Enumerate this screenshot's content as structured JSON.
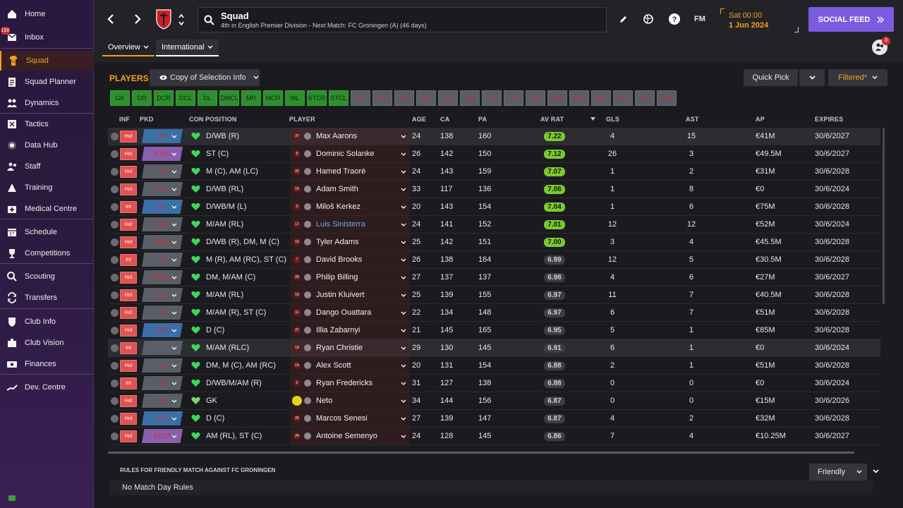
{
  "sidebar": {
    "items": [
      {
        "label": "Home"
      },
      {
        "label": "Inbox",
        "badge": "150"
      },
      {
        "label": "Squad"
      },
      {
        "label": "Squad Planner"
      },
      {
        "label": "Dynamics"
      },
      {
        "label": "Tactics"
      },
      {
        "label": "Data Hub"
      },
      {
        "label": "Staff"
      },
      {
        "label": "Training"
      },
      {
        "label": "Medical Centre"
      },
      {
        "label": "Schedule"
      },
      {
        "label": "Competitions"
      },
      {
        "label": "Scouting"
      },
      {
        "label": "Transfers"
      },
      {
        "label": "Club Info"
      },
      {
        "label": "Club Vision"
      },
      {
        "label": "Finances"
      },
      {
        "label": "Dev. Centre"
      }
    ]
  },
  "header": {
    "title": "Squad",
    "subtitle": "4th in English Premier Division - Next Match: FC Groningen (A) (46 days)",
    "day": "Sat 00:00",
    "date": "1 Jun 2024",
    "social_label": "SOCIAL FEED",
    "fm_label": "FM",
    "notif_count": "3",
    "tabs": [
      {
        "label": "Overview"
      },
      {
        "label": "International"
      }
    ]
  },
  "players_panel": {
    "title": "PLAYERS",
    "selection_label": "Copy of Selection Info",
    "quick_pick": "Quick Pick",
    "filtered": "Filtered*",
    "positions_on": [
      "GK",
      "DR",
      "DCR",
      "DCL",
      "DL",
      "DMCL",
      "MR",
      "MCR",
      "ML",
      "STCR",
      "STCL"
    ],
    "positions_off": [
      "S1",
      "S2",
      "S3",
      "S4",
      "S5",
      "S6",
      "S7",
      "S8",
      "S9",
      "S10",
      "S11",
      "S12",
      "S13",
      "S14",
      "S15"
    ],
    "headers": {
      "inf": "INF",
      "pkd": "PKD",
      "con": "CON",
      "position": "POSITION",
      "player": "PLAYER",
      "age": "AGE",
      "ca": "CA",
      "pa": "PA",
      "avrat": "AV RAT",
      "gls": "GLS",
      "ast": "AST",
      "ap": "AP",
      "expires": "EXPIRES"
    }
  },
  "rows": [
    {
      "inf": "Hol",
      "pkd": "DR",
      "pkd_color": "#3a6fa8",
      "num": "37",
      "pos": "D/WB (R)",
      "name": "Max Aarons",
      "age": "24",
      "ca": "138",
      "pa": "160",
      "rat": "7.22",
      "good": true,
      "gls": "4",
      "ast": "15",
      "ap": "€41M",
      "exp": "30/6/2027",
      "hl": true,
      "heart": "#3ed85a"
    },
    {
      "inf": "Hol",
      "pkd": "STCL",
      "pkd_color": "#8a5fb0",
      "num": "9",
      "pos": "ST (C)",
      "name": "Dominic Solanke",
      "age": "26",
      "ca": "142",
      "pa": "150",
      "rat": "7.12",
      "good": true,
      "gls": "26",
      "ast": "3",
      "ap": "€49.5M",
      "exp": "30/6/2027",
      "heart": "#3ed85a"
    },
    {
      "inf": "Hol",
      "pkd": "S3",
      "pkd_color": "#5a5e66",
      "num": "22",
      "pos": "M (C), AM (LC)",
      "name": "Hamed Traorè",
      "age": "24",
      "ca": "143",
      "pa": "159",
      "rat": "7.07",
      "good": true,
      "gls": "1",
      "ast": "2",
      "ap": "€31M",
      "exp": "30/6/2028",
      "heart": "#3ed85a"
    },
    {
      "inf": "Hol",
      "pkd": "S11",
      "pkd_color": "#5a5e66",
      "num": "15",
      "pos": "D/WB (RL)",
      "name": "Adam Smith",
      "age": "33",
      "ca": "117",
      "pa": "136",
      "rat": "7.06",
      "good": true,
      "gls": "1",
      "ast": "8",
      "ap": "€0",
      "exp": "30/6/2024",
      "heart": "#3ed85a"
    },
    {
      "inf": "Int",
      "pkd": "DL",
      "pkd_color": "#3a6fa8",
      "num": "3",
      "pos": "D/WB/M (L)",
      "name": "Miloš Kerkez",
      "age": "20",
      "ca": "143",
      "pa": "154",
      "rat": "7.04",
      "good": true,
      "gls": "1",
      "ast": "6",
      "ap": "€75M",
      "exp": "30/6/2028",
      "heart": "#3ed85a"
    },
    {
      "inf": "Hol",
      "pkd": "MR",
      "pkd_color": "#5a5e66",
      "num": "17",
      "pos": "M/AM (RL)",
      "name": "Luis Sinisterra",
      "age": "24",
      "ca": "141",
      "pa": "152",
      "rat": "7.01",
      "good": true,
      "gls": "12",
      "ast": "12",
      "ap": "€52M",
      "exp": "30/6/2024",
      "blue": true,
      "heart": "#3ed85a"
    },
    {
      "inf": "Hol",
      "pkd": "MCR",
      "pkd_color": "#5a5e66",
      "num": "16",
      "pos": "D/WB (R), DM, M (C)",
      "name": "Tyler Adams",
      "age": "25",
      "ca": "142",
      "pa": "151",
      "rat": "7.00",
      "good": true,
      "gls": "3",
      "ast": "4",
      "ap": "€45.5M",
      "exp": "30/6/2028",
      "heart": "#3ed85a"
    },
    {
      "inf": "Int",
      "pkd": "S8",
      "pkd_color": "#5a5e66",
      "num": "7",
      "pos": "M (R), AM (RC), ST (C)",
      "name": "David Brooks",
      "age": "26",
      "ca": "138",
      "pa": "164",
      "rat": "6.99",
      "good": false,
      "gls": "12",
      "ast": "5",
      "ap": "€30.5M",
      "exp": "30/6/2028",
      "heart": "#3ed85a"
    },
    {
      "inf": "Hol",
      "pkd": "DMCL",
      "pkd_color": "#5a5e66",
      "num": "29",
      "pos": "DM, M/AM (C)",
      "name": "Philip Billing",
      "age": "27",
      "ca": "137",
      "pa": "137",
      "rat": "6.98",
      "good": false,
      "gls": "4",
      "ast": "6",
      "ap": "€27M",
      "exp": "30/6/2027",
      "heart": "#3ed85a"
    },
    {
      "inf": "Hol",
      "pkd": "ML",
      "pkd_color": "#5a5e66",
      "num": "19",
      "pos": "M/AM (RL)",
      "name": "Justin Kluivert",
      "age": "25",
      "ca": "139",
      "pa": "155",
      "rat": "6.97",
      "good": false,
      "gls": "11",
      "ast": "7",
      "ap": "€40.5M",
      "exp": "30/6/2028",
      "heart": "#3ed85a"
    },
    {
      "inf": "Hol",
      "pkd": "S7",
      "pkd_color": "#5a5e66",
      "num": "11",
      "pos": "M/AM (R), ST (C)",
      "name": "Dango Ouattara",
      "age": "22",
      "ca": "134",
      "pa": "148",
      "rat": "6.97",
      "good": false,
      "gls": "6",
      "ast": "7",
      "ap": "€51M",
      "exp": "30/6/2028",
      "heart": "#3ed85a"
    },
    {
      "inf": "Hol",
      "pkd": "DCR",
      "pkd_color": "#3a6fa8",
      "num": "27",
      "pos": "D (C)",
      "name": "Illia Zabarnyi",
      "age": "21",
      "ca": "145",
      "pa": "165",
      "rat": "6.95",
      "good": false,
      "gls": "5",
      "ast": "1",
      "ap": "€85M",
      "exp": "30/6/2028",
      "heart": "#3ed85a"
    },
    {
      "inf": "Int",
      "pkd": "-",
      "pkd_color": "#5a5e66",
      "num": "18",
      "pos": "M/AM (RLC)",
      "name": "Ryan Christie",
      "age": "29",
      "ca": "130",
      "pa": "145",
      "rat": "6.91",
      "good": false,
      "gls": "6",
      "ast": "1",
      "ap": "€0",
      "exp": "30/6/2024",
      "hl": true,
      "heart": "#3ed85a"
    },
    {
      "inf": "Hol",
      "pkd": "S6",
      "pkd_color": "#5a5e66",
      "num": "14",
      "pos": "DM, M (C), AM (RC)",
      "name": "Alex Scott",
      "age": "20",
      "ca": "131",
      "pa": "154",
      "rat": "6.88",
      "good": false,
      "gls": "2",
      "ast": "1",
      "ap": "€51M",
      "exp": "30/6/2028",
      "heart": "#3ed85a"
    },
    {
      "inf": "Int",
      "pkd": "S9",
      "pkd_color": "#5a5e66",
      "num": "2",
      "pos": "D/WB/M/AM (R)",
      "name": "Ryan Fredericks",
      "age": "31",
      "ca": "127",
      "pa": "138",
      "rat": "6.88",
      "good": false,
      "gls": "0",
      "ast": "0",
      "ap": "€0",
      "exp": "30/6/2024",
      "heart": "#3ed85a"
    },
    {
      "inf": "Hol",
      "pkd": "GK",
      "pkd_color": "#5a5e66",
      "num": "1",
      "pos": "GK",
      "name": "Neto",
      "age": "34",
      "ca": "144",
      "pa": "156",
      "rat": "6.87",
      "good": false,
      "gls": "0",
      "ast": "0",
      "ap": "€15M",
      "exp": "30/6/2026",
      "heart": "#7ed86a",
      "yellow": true
    },
    {
      "inf": "Hol",
      "pkd": "DCL",
      "pkd_color": "#3a6fa8",
      "num": "25",
      "pos": "D (C)",
      "name": "Marcos Senesi",
      "age": "27",
      "ca": "139",
      "pa": "147",
      "rat": "6.87",
      "good": false,
      "gls": "4",
      "ast": "2",
      "ap": "€32M",
      "exp": "30/6/2028",
      "heart": "#3ed85a"
    },
    {
      "inf": "Hol",
      "pkd": "STCR",
      "pkd_color": "#8a5fb0",
      "num": "24",
      "pos": "AM (RL), ST (C)",
      "name": "Antoine Semenyo",
      "age": "24",
      "ca": "128",
      "pa": "145",
      "rat": "6.86",
      "good": false,
      "gls": "7",
      "ast": "4",
      "ap": "€10.25M",
      "exp": "30/6/2027",
      "heart": "#3ed85a"
    }
  ],
  "rules": {
    "title": "RULES FOR FRIENDLY MATCH AGAINST FC GRONINGEN",
    "value": "No Match Day Rules",
    "select": "Friendly"
  }
}
